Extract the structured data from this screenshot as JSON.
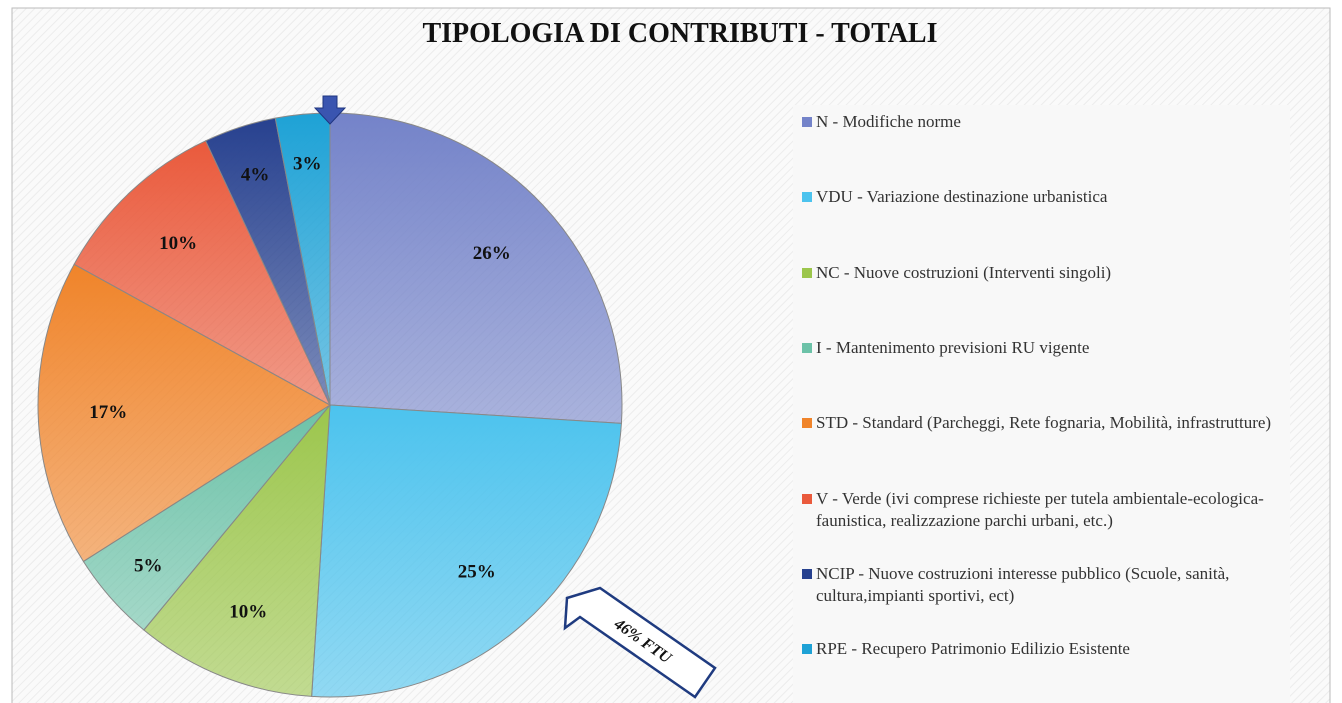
{
  "chart_data": {
    "type": "pie",
    "title": "TIPOLOGIA DI CONTRIBUTI - TOTALI",
    "categories": [
      "N - Modifiche norme",
      "VDU - Variazione destinazione urbanistica",
      "NC - Nuove costruzioni (Interventi singoli)",
      "I - Mantenimento previsioni RU vigente",
      "STD - Standard (Parcheggi, Rete fognaria, Mobilità, infrastrutture)",
      "V - Verde (ivi comprese richieste per tutela ambientale-ecologica-faunistica, realizzazione parchi urbani, etc.)",
      "NCIP - Nuove costruzioni interesse pubblico (Scuole, sanità, cultura,impianti sportivi, ect)",
      "RPE - Recupero Patrimonio Edilizio Esistente"
    ],
    "values": [
      26,
      25,
      10,
      5,
      17,
      10,
      4,
      3
    ],
    "value_labels": [
      "26%",
      "25%",
      "10%",
      "5%",
      "17%",
      "10%",
      "4%",
      "3%"
    ],
    "colors": [
      "#7483c9",
      "#4cc3ee",
      "#9cc64c",
      "#6cc2a8",
      "#f0842a",
      "#ea5a3c",
      "#27418f",
      "#1ea2d6"
    ],
    "legend": "right",
    "annotations": [
      "46% FTU"
    ]
  }
}
